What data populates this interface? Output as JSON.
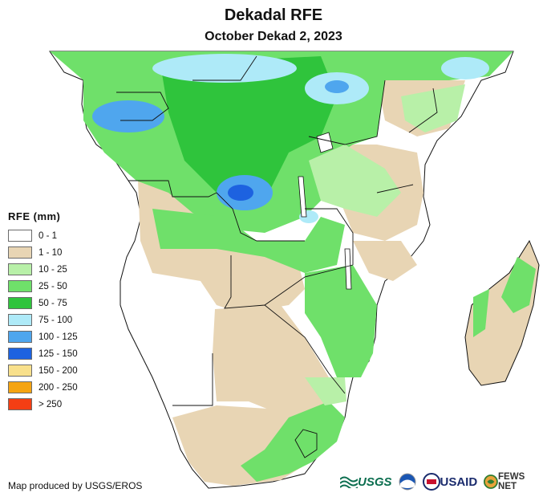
{
  "header": {
    "title": "Dekadal RFE",
    "subtitle": "October Dekad 2, 2023"
  },
  "legend": {
    "title": "RFE (mm)",
    "items": [
      {
        "label": "0 - 1",
        "color": "#ffffff"
      },
      {
        "label": "1 - 10",
        "color": "#e8d5b4"
      },
      {
        "label": "10 - 25",
        "color": "#b8f0a8"
      },
      {
        "label": "25 - 50",
        "color": "#6fe06a"
      },
      {
        "label": "50 - 75",
        "color": "#2fc43c"
      },
      {
        "label": "75 - 100",
        "color": "#aeeaf8"
      },
      {
        "label": "100 - 125",
        "color": "#4fa6ee"
      },
      {
        "label": "125 - 150",
        "color": "#1d62e0"
      },
      {
        "label": "150 - 200",
        "color": "#f8e08c"
      },
      {
        "label": "200 - 250",
        "color": "#f5a411"
      },
      {
        "label": "> 250",
        "color": "#f43e14"
      }
    ]
  },
  "footer": {
    "credit": "Map produced by USGS/EROS",
    "logos": {
      "usgs": "USGS",
      "usaid": "USAID",
      "fews": "FEWS NET"
    }
  }
}
